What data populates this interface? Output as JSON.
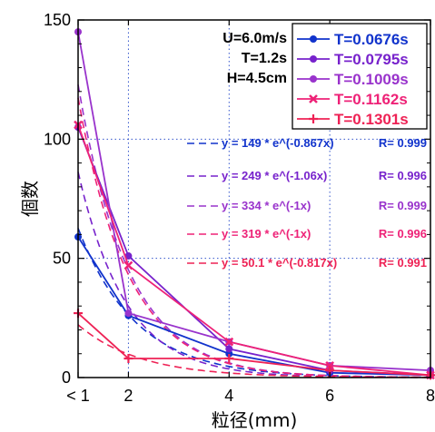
{
  "chart_data": {
    "type": "line",
    "x_ticks": [
      "< 1",
      "2",
      "4",
      "6",
      "8"
    ],
    "x": [
      1,
      2,
      4,
      6,
      8
    ],
    "xlabel": "粒径(mm)",
    "ylabel": "個数",
    "ylim": [
      0,
      150
    ],
    "y_ticks": [
      "0",
      "50",
      "100",
      "150"
    ],
    "grid": "dotted",
    "legend_position": "top-right",
    "params": [
      "U=6.0m/s",
      "T=1.2s",
      "H=4.5cm"
    ],
    "series": [
      {
        "name": "T=0.0676s",
        "color": "#1133cc",
        "marker": "circle",
        "values": [
          59,
          26,
          10,
          2,
          1
        ]
      },
      {
        "name": "T=0.0795s",
        "color": "#7722cc",
        "marker": "circle",
        "values": [
          105,
          51,
          12,
          3,
          1
        ]
      },
      {
        "name": "T=0.1009s",
        "color": "#9933cc",
        "marker": "circle",
        "values": [
          145,
          27,
          15,
          5,
          3
        ]
      },
      {
        "name": "T=0.1162s",
        "color": "#ee2277",
        "marker": "x",
        "values": [
          106,
          47,
          15,
          5,
          1
        ]
      },
      {
        "name": "T=0.1301s",
        "color": "#ee2255",
        "marker": "plus",
        "values": [
          27,
          8,
          8,
          3,
          1
        ]
      }
    ],
    "fits": [
      {
        "text": "y = 149 * e^(-0.867x)",
        "r": "R= 0.999",
        "a": 149,
        "b": 0.867,
        "color": "#1133cc"
      },
      {
        "text": "y = 249 * e^(-1.06x)",
        "r": "R= 0.996",
        "a": 249,
        "b": 1.06,
        "color": "#7722cc"
      },
      {
        "text": "y = 334 * e^(-1x)",
        "r": "R= 0.999",
        "a": 334,
        "b": 1.0,
        "color": "#9933cc"
      },
      {
        "text": "y = 319 * e^(-1x)",
        "r": "R= 0.996",
        "a": 319,
        "b": 1.0,
        "color": "#ee2277"
      },
      {
        "text": "y = 50.1 * e^(-0.817x)",
        "r": "R= 0.991",
        "a": 50.1,
        "b": 0.817,
        "color": "#ee2255"
      }
    ]
  }
}
